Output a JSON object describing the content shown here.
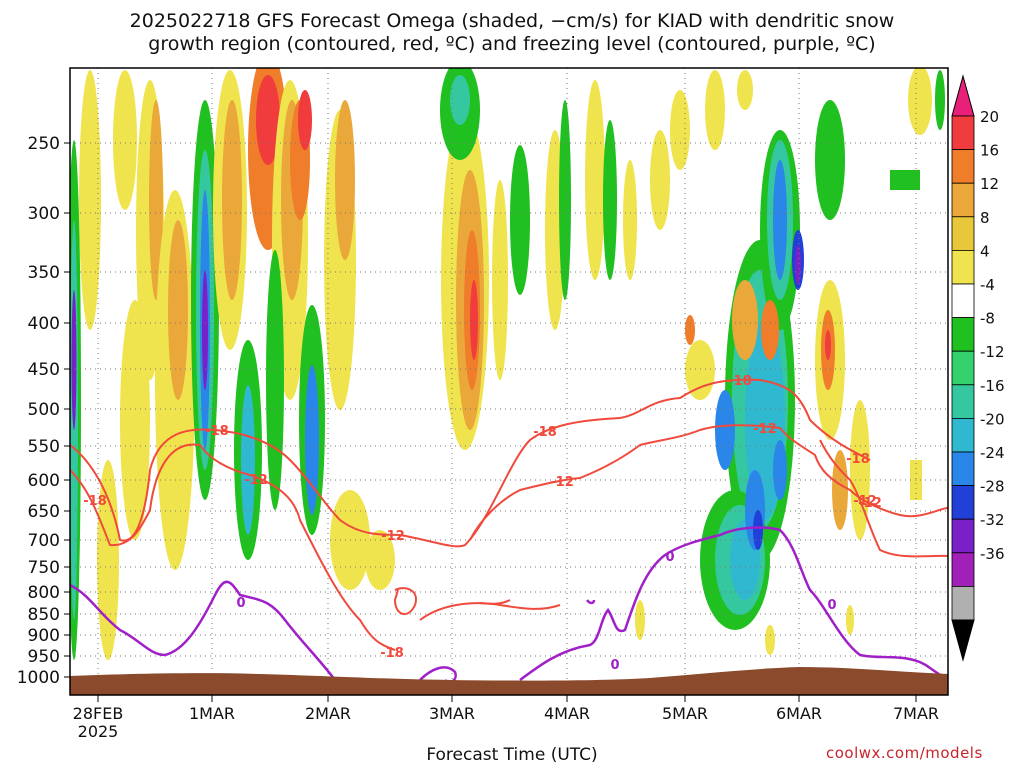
{
  "header": {
    "title_line1": "2025022718 GFS Forecast Omega (shaded, −cm/s) for KIAD with dendritic snow",
    "title_line2": "growth region (contoured, red, ºC) and freezing level (contoured, purple, ºC)"
  },
  "footer": {
    "credit": "coolwx.com/models"
  },
  "chart_data": {
    "type": "heatmap",
    "title": "2025022718 GFS Forecast Omega (shaded, −cm/s) for KIAD with dendritic snow growth region (contoured, red, ºC) and freezing level (contoured, purple, ºC)",
    "xlabel": "Forecast Time (UTC)",
    "ylabel": "",
    "x_ticks": [
      "28FEB\n2025",
      "1MAR",
      "2MAR",
      "3MAR",
      "4MAR",
      "5MAR",
      "6MAR",
      "7MAR"
    ],
    "y_ticks": [
      "250",
      "300",
      "350",
      "400",
      "450",
      "500",
      "550",
      "600",
      "650",
      "700",
      "750",
      "800",
      "850",
      "900",
      "950",
      "1000"
    ],
    "y_axis": "pressure (hPa), inverted",
    "grid": true,
    "colorbar": {
      "levels": [
        20,
        16,
        12,
        8,
        4,
        -4,
        -8,
        -12,
        -16,
        -20,
        -24,
        -28,
        -32,
        -36
      ],
      "colors": [
        "#e8207a",
        "#f03c3c",
        "#ef7d2a",
        "#eaa83a",
        "#e8c83a",
        "#f0e44e",
        "#ffffff",
        "#1fc01f",
        "#33d26d",
        "#35c8a0",
        "#2fb8d0",
        "#2a86e8",
        "#2040d8",
        "#7a20c8",
        "#a020b8",
        "#b0b0b0",
        "#000000"
      ]
    },
    "contour_labels": {
      "dendritic_red": [
        "-18",
        "-12",
        "-18",
        "-12",
        "-18",
        "-12",
        "-18",
        "-12",
        "-18",
        "-12",
        "-18",
        "-12"
      ],
      "freezing_purple": [
        "0",
        "0",
        "0",
        "0"
      ]
    }
  }
}
